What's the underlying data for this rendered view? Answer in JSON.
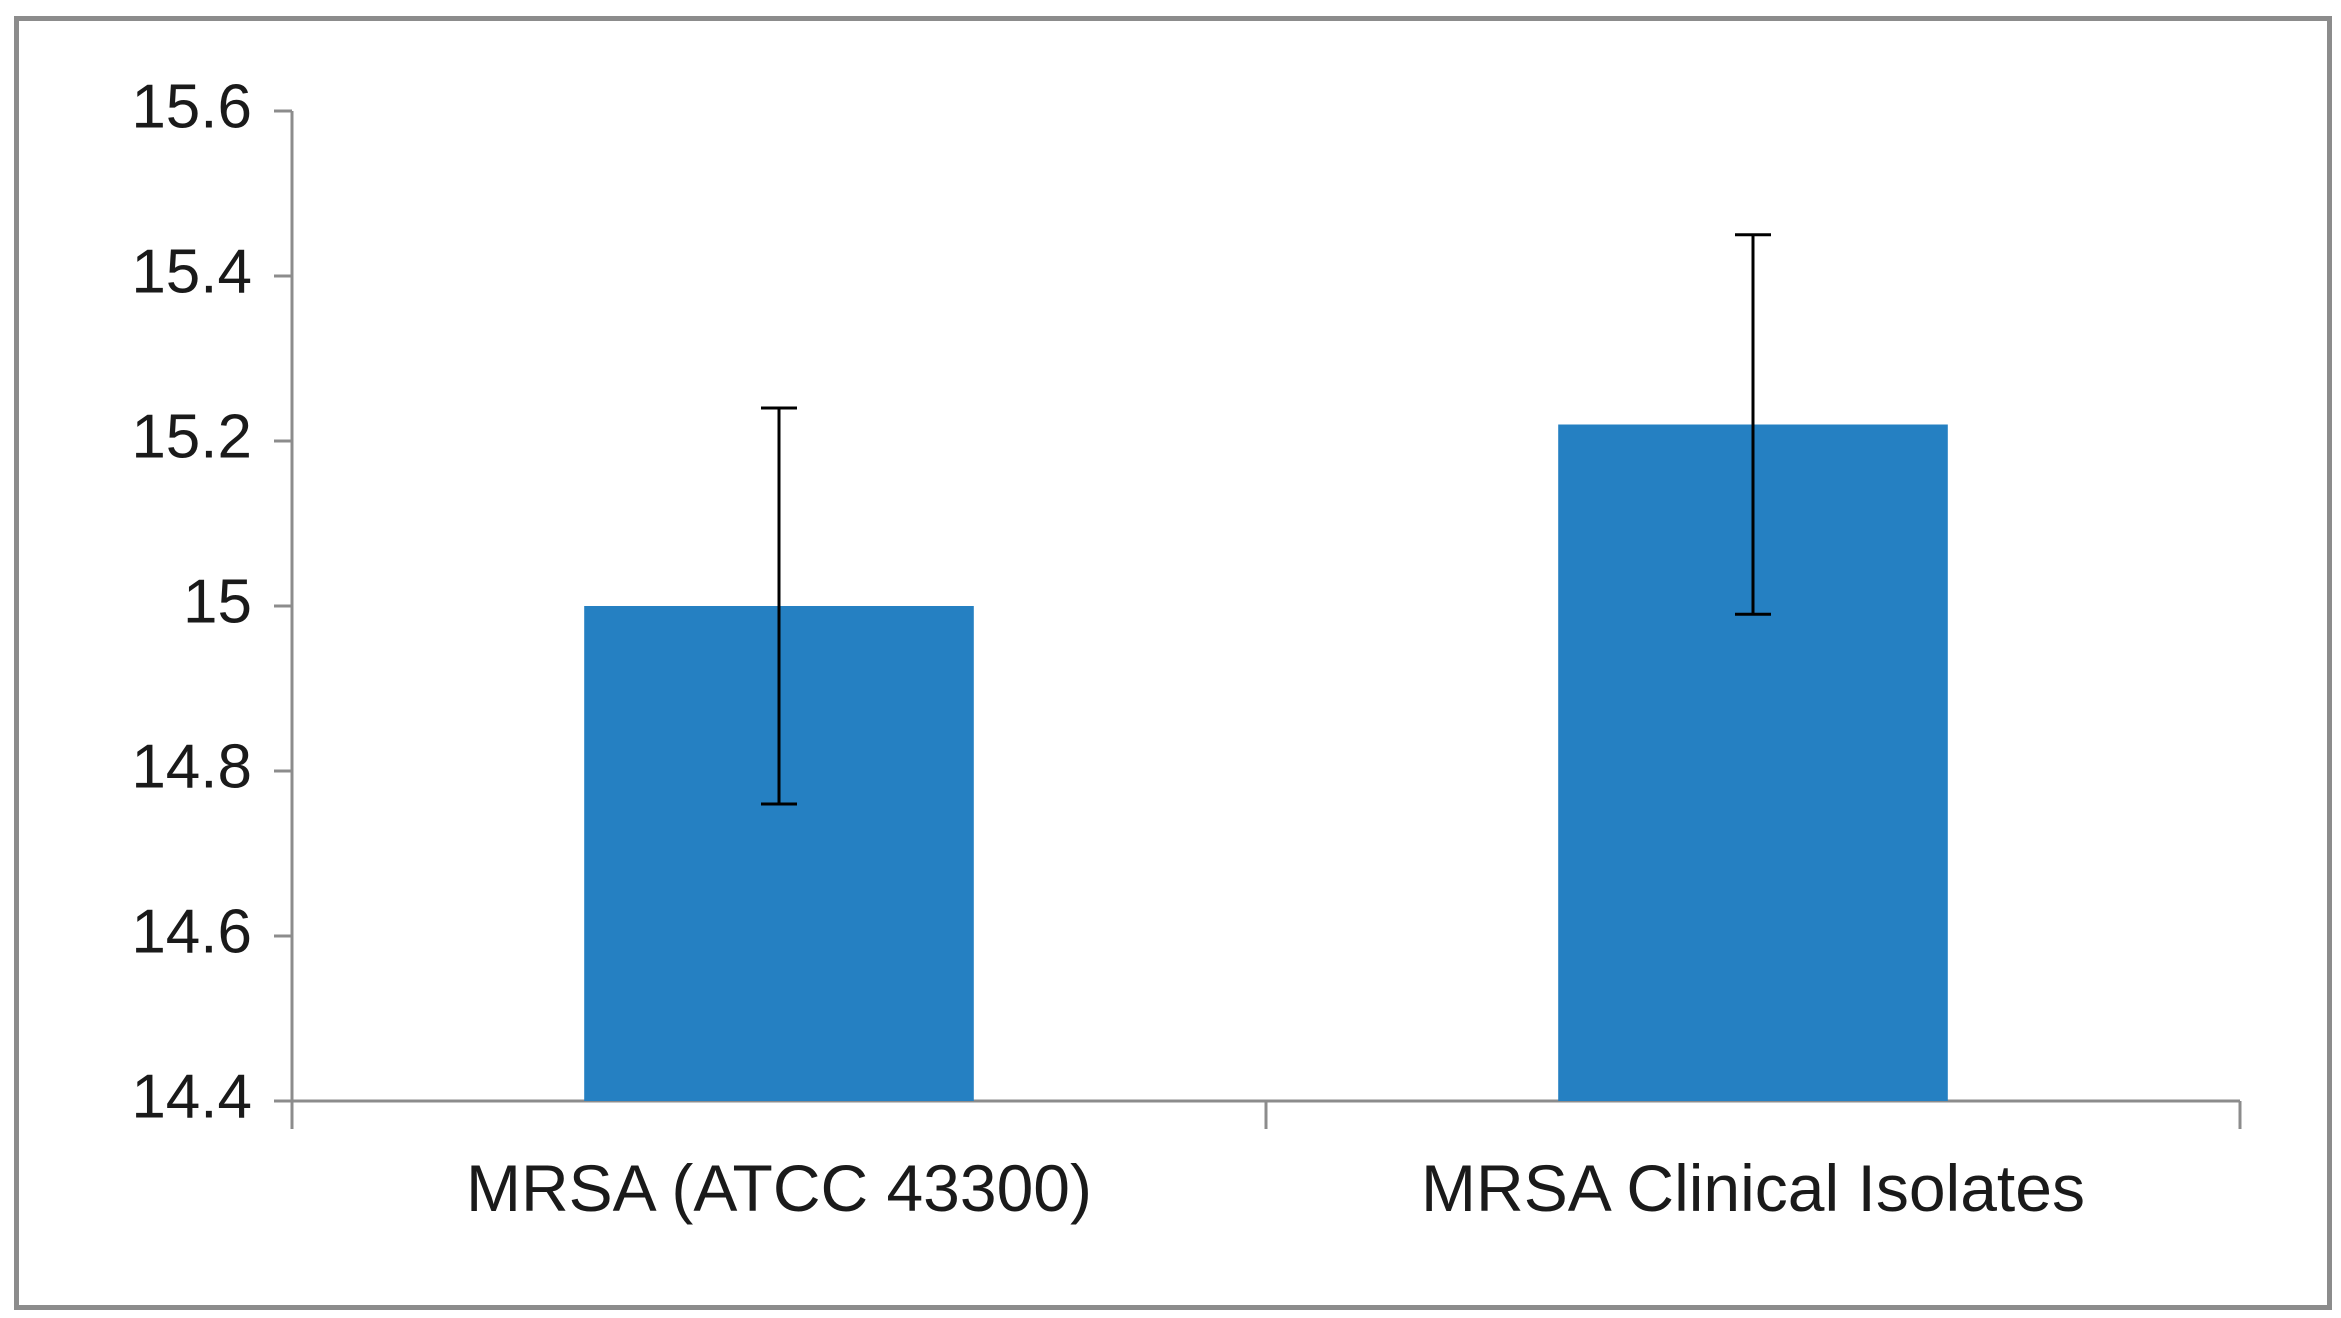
{
  "chart_data": {
    "type": "bar",
    "title": "",
    "xlabel": "",
    "ylabel": "",
    "categories": [
      "MRSA (ATCC 43300)",
      "MRSA Clinical Isolates"
    ],
    "values": [
      15.0,
      15.22
    ],
    "error": [
      0.24,
      0.23
    ],
    "ylim": [
      14.4,
      15.6
    ],
    "yticks": [
      14.4,
      14.6,
      14.8,
      15.0,
      15.2,
      15.4,
      15.6
    ],
    "ytick_labels": [
      "14.4",
      "14.6",
      "14.8",
      "15",
      "15.2",
      "15.4",
      "15.6"
    ],
    "grid": false,
    "legend": "none",
    "colors": {
      "bar": "#2580c2",
      "axis": "#8c8c8c",
      "error_bar": "#000000",
      "frame": "#8c8c8c"
    }
  }
}
